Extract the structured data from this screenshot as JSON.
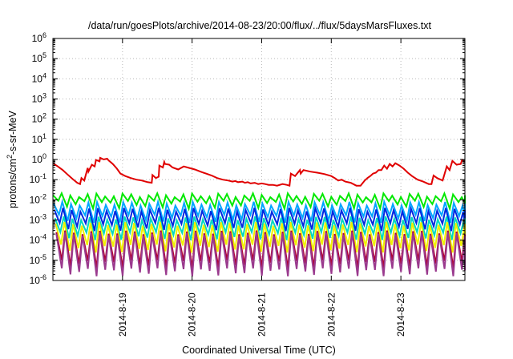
{
  "chart_data": {
    "type": "line",
    "title": "/data/run/goesPlots/archive/2014-08-23/20:00/flux/../flux/5daysMarsFluxes.txt",
    "xlabel": "Coordinated Universal Time (UTC)",
    "ylabel": {
      "prefix": "protons/cm",
      "superscript": "2",
      "suffix": "-s-sr-MeV"
    },
    "y_scale": "log",
    "ylim": [
      1e-06,
      1000000.0
    ],
    "y_ticks": [
      {
        "base": "10",
        "exp": "-6",
        "value": 1e-06
      },
      {
        "base": "10",
        "exp": "-5",
        "value": 1e-05
      },
      {
        "base": "10",
        "exp": "-4",
        "value": 0.0001
      },
      {
        "base": "10",
        "exp": "-3",
        "value": 0.001
      },
      {
        "base": "10",
        "exp": "-2",
        "value": 0.01
      },
      {
        "base": "10",
        "exp": "-1",
        "value": 0.1
      },
      {
        "base": "10",
        "exp": "0",
        "value": 1
      },
      {
        "base": "10",
        "exp": "1",
        "value": 10
      },
      {
        "base": "10",
        "exp": "2",
        "value": 100
      },
      {
        "base": "10",
        "exp": "3",
        "value": 1000
      },
      {
        "base": "10",
        "exp": "4",
        "value": 10000
      },
      {
        "base": "10",
        "exp": "5",
        "value": 100000
      },
      {
        "base": "10",
        "exp": "6",
        "value": 1000000
      }
    ],
    "x_unit": "days",
    "xlim": [
      0,
      5.92
    ],
    "x_ticks": [
      {
        "label": "2014-8-19",
        "value": 1.0
      },
      {
        "label": "2014-8-20",
        "value": 2.0
      },
      {
        "label": "2014-8-21",
        "value": 3.0
      },
      {
        "label": "2014-8-22",
        "value": 4.0
      },
      {
        "label": "2014-8-23",
        "value": 5.0
      }
    ],
    "grid": true,
    "series": [
      {
        "color": "#e00000",
        "x": [
          0.0,
          0.07,
          0.14,
          0.21,
          0.28,
          0.35,
          0.39,
          0.41,
          0.45,
          0.5,
          0.51,
          0.56,
          0.6,
          0.62,
          0.67,
          0.68,
          0.73,
          0.78,
          0.8,
          0.86,
          0.92,
          0.97,
          1.04,
          1.12,
          1.2,
          1.28,
          1.36,
          1.42,
          1.43,
          1.48,
          1.52,
          1.53,
          1.58,
          1.6,
          1.61,
          1.67,
          1.72,
          1.8,
          1.88,
          1.96,
          2.04,
          2.12,
          2.2,
          2.28,
          2.36,
          2.44,
          2.52,
          2.58,
          2.62,
          2.66,
          2.72,
          2.76,
          2.8,
          2.84,
          2.9,
          2.95,
          3.0,
          3.05,
          3.1,
          3.16,
          3.22,
          3.3,
          3.36,
          3.4,
          3.42,
          3.48,
          3.55,
          3.56,
          3.6,
          3.7,
          3.8,
          3.9,
          4.0,
          4.05,
          4.1,
          4.15,
          4.2,
          4.28,
          4.36,
          4.42,
          4.48,
          4.52,
          4.56,
          4.6,
          4.64,
          4.68,
          4.72,
          4.76,
          4.8,
          4.84,
          4.88,
          4.92,
          4.98,
          5.04,
          5.1,
          5.16,
          5.24,
          5.32,
          5.4,
          5.44,
          5.47,
          5.52,
          5.6,
          5.66,
          5.7,
          5.74,
          5.8,
          5.86,
          5.88,
          5.92
        ],
        "values": [
          0.65,
          0.45,
          0.3,
          0.18,
          0.11,
          0.07,
          0.06,
          0.12,
          0.09,
          0.38,
          0.25,
          0.55,
          0.45,
          0.95,
          0.8,
          1.2,
          1.0,
          1.1,
          0.9,
          0.6,
          0.35,
          0.2,
          0.15,
          0.12,
          0.1,
          0.09,
          0.075,
          0.07,
          0.17,
          0.12,
          0.14,
          0.5,
          0.4,
          0.75,
          0.6,
          0.55,
          0.4,
          0.32,
          0.45,
          0.38,
          0.32,
          0.25,
          0.2,
          0.16,
          0.12,
          0.1,
          0.09,
          0.08,
          0.085,
          0.075,
          0.08,
          0.07,
          0.075,
          0.065,
          0.07,
          0.06,
          0.065,
          0.06,
          0.055,
          0.055,
          0.05,
          0.06,
          0.055,
          0.05,
          0.2,
          0.15,
          0.3,
          0.2,
          0.3,
          0.25,
          0.22,
          0.19,
          0.15,
          0.12,
          0.09,
          0.1,
          0.08,
          0.07,
          0.05,
          0.05,
          0.09,
          0.12,
          0.15,
          0.2,
          0.22,
          0.3,
          0.3,
          0.5,
          0.35,
          0.6,
          0.45,
          0.65,
          0.5,
          0.35,
          0.22,
          0.15,
          0.1,
          0.08,
          0.06,
          0.06,
          0.16,
          0.12,
          0.09,
          0.45,
          0.3,
          0.85,
          0.55,
          0.6,
          0.95,
          0.75
        ],
        "linewidth": 2
      },
      {
        "color": "#00e800",
        "peak": 0.021,
        "trough": 0.009,
        "period": 0.125,
        "phase": 0.0,
        "linewidth": 2
      },
      {
        "color": "#00a6ff",
        "peak": 0.008,
        "trough": 0.0018,
        "period": 0.125,
        "phase": 0.01,
        "linewidth": 2
      },
      {
        "color": "#0028e0",
        "peak": 0.004,
        "trough": 0.0007,
        "period": 0.125,
        "phase": 0.02,
        "linewidth": 2
      },
      {
        "color": "#00d8c0",
        "peak": 0.0015,
        "trough": 0.00025,
        "period": 0.125,
        "phase": 0.03,
        "linewidth": 2
      },
      {
        "color": "#f0f000",
        "peak": 0.0008,
        "trough": 6e-05,
        "period": 0.125,
        "phase": 0.04,
        "linewidth": 2
      },
      {
        "color": "#b00030",
        "peak": 0.0003,
        "trough": 1e-05,
        "period": 0.125,
        "phase": 0.05,
        "linewidth": 2
      },
      {
        "color": "#9a3a8e",
        "peak": 0.00025,
        "trough": 4e-06,
        "period": 0.125,
        "phase": 0.05,
        "linewidth": 2
      }
    ]
  }
}
